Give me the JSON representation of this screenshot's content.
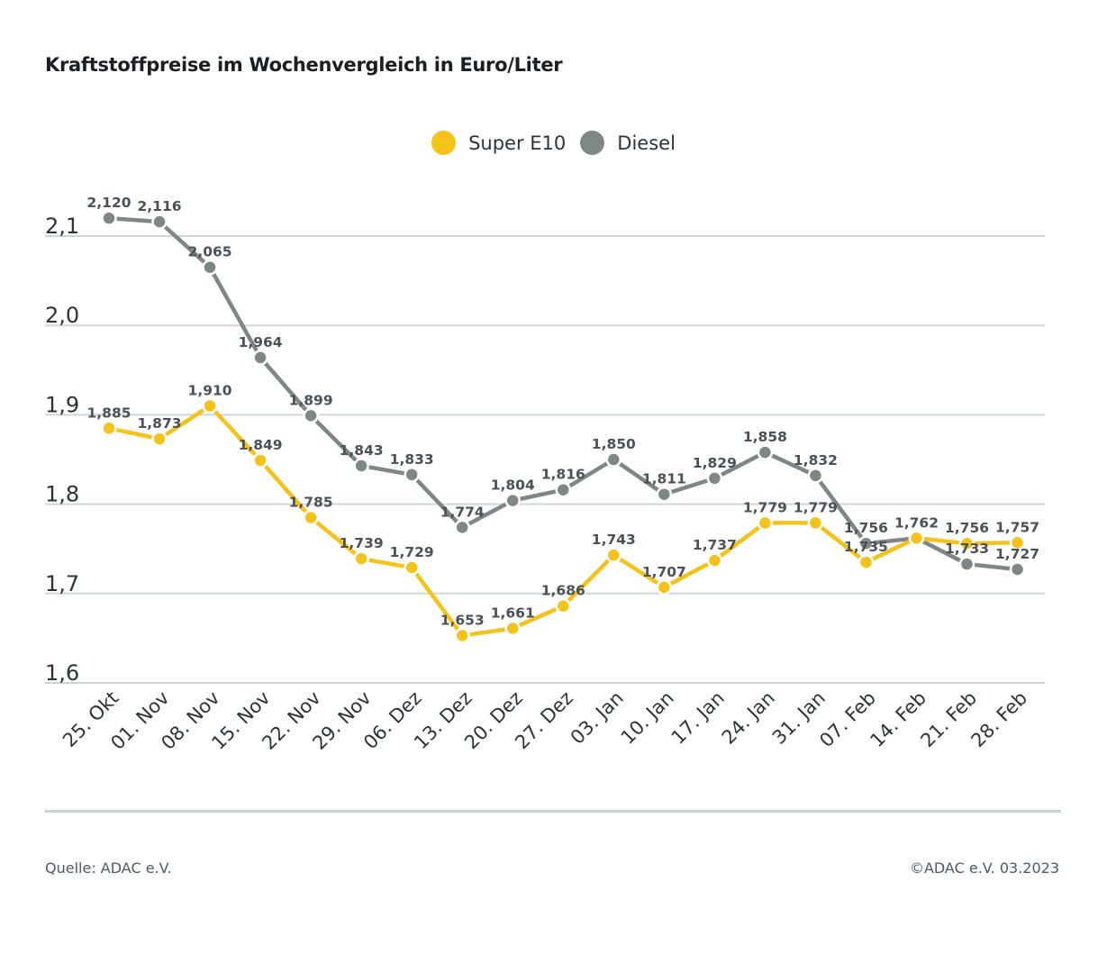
{
  "title": "Kraftstoffpreise im Wochenvergleich in Euro/Liter",
  "source": "Quelle: ADAC e.V.",
  "copyright": "©ADAC e.V. 03.2023",
  "colors": {
    "super_e10": "#f5c21a",
    "diesel": "#7e8785",
    "grid": "#cfd6d6",
    "text": "#2b3338"
  },
  "chart_data": {
    "type": "line",
    "title": "Kraftstoffpreise im Wochenvergleich in Euro/Liter",
    "xlabel": "",
    "ylabel": "",
    "ylim": [
      1.6,
      2.1
    ],
    "yticks": [
      2.1,
      2.0,
      1.9,
      1.8,
      1.7,
      1.6
    ],
    "ytick_labels": [
      "2,1",
      "2,0",
      "1,9",
      "1,8",
      "1,7",
      "1,6"
    ],
    "grid": true,
    "legend_position": "top-center",
    "categories": [
      "25. Okt",
      "01. Nov",
      "08. Nov",
      "15. Nov",
      "22. Nov",
      "29. Nov",
      "06. Dez",
      "13. Dez",
      "20. Dez",
      "27. Dez",
      "03. Jan",
      "10. Jan",
      "17. Jan",
      "24. Jan",
      "31. Jan",
      "07. Feb",
      "14. Feb",
      "21. Feb",
      "28. Feb"
    ],
    "series": [
      {
        "name": "Super E10",
        "color": "#f5c21a",
        "values": [
          1.885,
          1.873,
          1.91,
          1.849,
          1.785,
          1.739,
          1.729,
          1.653,
          1.661,
          1.686,
          1.743,
          1.707,
          1.737,
          1.779,
          1.779,
          1.735,
          1.762,
          1.756,
          1.757
        ],
        "labels": [
          "1,885",
          "1,873",
          "1,910",
          "1,849",
          "1,785",
          "1,739",
          "1,729",
          "1,653",
          "1,661",
          "1,686",
          "1,743",
          "1,707",
          "1,737",
          "1,779",
          "1,779",
          "1,735",
          "",
          "1,756",
          "1,757"
        ]
      },
      {
        "name": "Diesel",
        "color": "#7e8785",
        "values": [
          2.12,
          2.116,
          2.065,
          1.964,
          1.899,
          1.843,
          1.833,
          1.774,
          1.804,
          1.816,
          1.85,
          1.811,
          1.829,
          1.858,
          1.832,
          1.756,
          1.762,
          1.733,
          1.727
        ],
        "labels": [
          "2,120",
          "2,116",
          "2,065",
          "1,964",
          "1,899",
          "1,843",
          "1,833",
          "1,774",
          "1,804",
          "1,816",
          "1,850",
          "1,811",
          "1,829",
          "1,858",
          "1,832",
          "1,756",
          "1,762",
          "1,733",
          "1,727"
        ]
      }
    ]
  }
}
